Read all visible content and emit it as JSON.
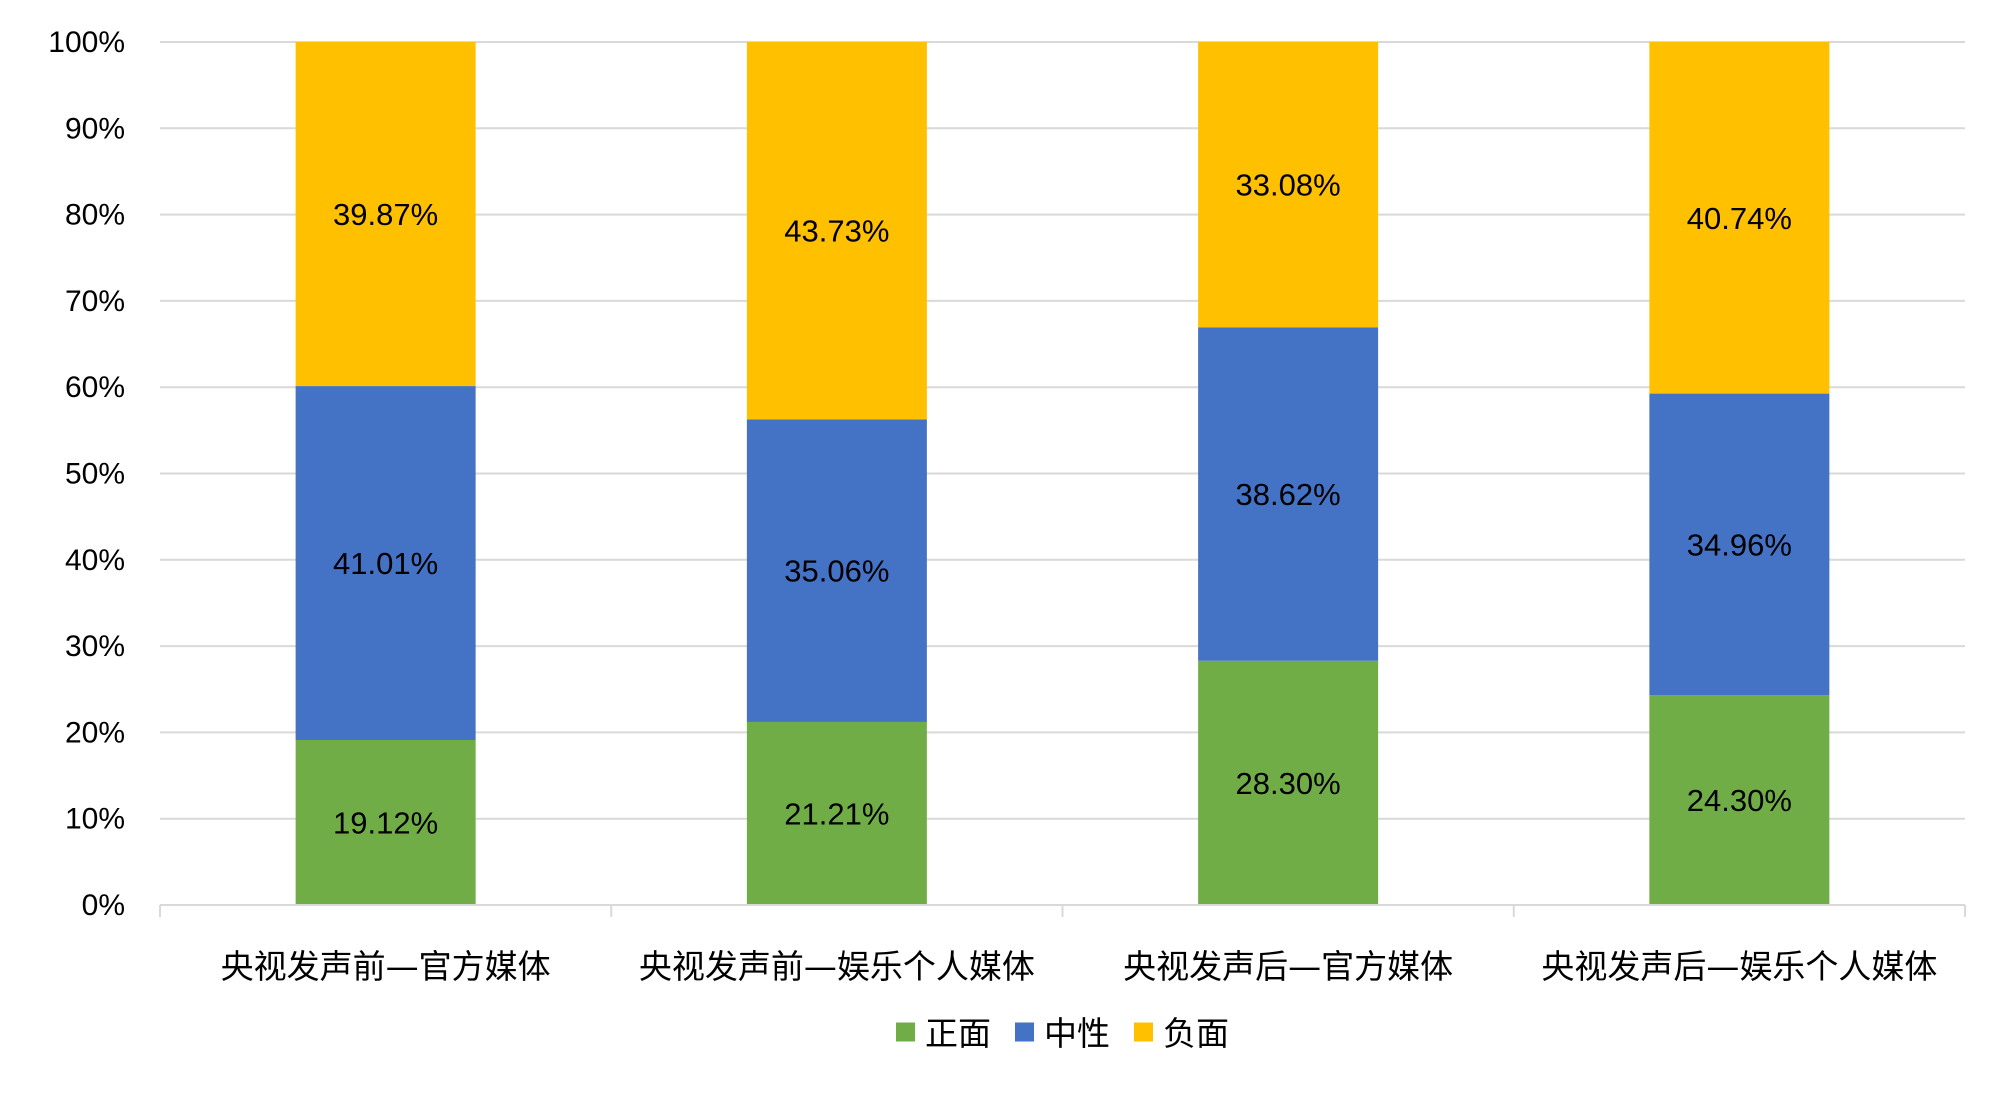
{
  "chart_data": {
    "type": "bar",
    "stacked": true,
    "percent_stacked": true,
    "categories": [
      "央视发声前—官方媒体",
      "央视发声前—娱乐个人媒体",
      "央视发声后—官方媒体",
      "央视发声后—娱乐个人媒体"
    ],
    "series": [
      {
        "name": "正面",
        "color": "#70AD47",
        "values": [
          19.12,
          21.21,
          28.3,
          24.3
        ],
        "labels": [
          "19.12%",
          "21.21%",
          "28.30%",
          "24.30%"
        ]
      },
      {
        "name": "中性",
        "color": "#4472C4",
        "values": [
          41.01,
          35.06,
          38.62,
          34.96
        ],
        "labels": [
          "41.01%",
          "35.06%",
          "38.62%",
          "34.96%"
        ]
      },
      {
        "name": "负面",
        "color": "#FFC000",
        "values": [
          39.87,
          43.73,
          33.08,
          40.74
        ],
        "labels": [
          "39.87%",
          "43.73%",
          "33.08%",
          "40.74%"
        ]
      }
    ],
    "ylim": [
      0,
      100
    ],
    "yticks": [
      0,
      10,
      20,
      30,
      40,
      50,
      60,
      70,
      80,
      90,
      100
    ],
    "ytick_labels": [
      "0%",
      "10%",
      "20%",
      "30%",
      "40%",
      "50%",
      "60%",
      "70%",
      "80%",
      "90%",
      "100%"
    ],
    "grid": true,
    "gridline_color": "#D9D9D9",
    "legend_position": "bottom",
    "title": "",
    "xlabel": "",
    "ylabel": ""
  }
}
